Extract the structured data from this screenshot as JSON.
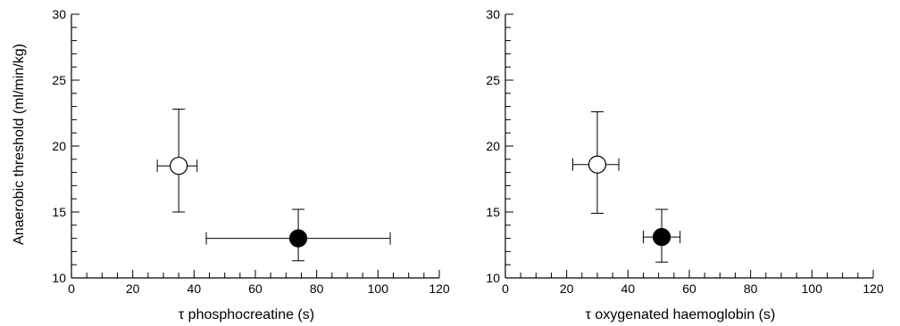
{
  "chart_data": [
    {
      "type": "scatter",
      "xlabel": "τ phosphocreatine (s)",
      "ylabel": "Anaerobic threshold (ml/min/kg)",
      "xlim": [
        0,
        120
      ],
      "ylim": [
        10,
        30
      ],
      "xticks": [
        "0",
        "20",
        "40",
        "60",
        "80",
        "100",
        "120"
      ],
      "yticks": [
        "10",
        "15",
        "20",
        "25",
        "30"
      ],
      "grid": false,
      "series": [
        {
          "marker": "open-circle",
          "x": 35,
          "y": 18.5,
          "xerr": [
            28,
            41
          ],
          "yerr": [
            15,
            22.8
          ]
        },
        {
          "marker": "filled-circle",
          "x": 74,
          "y": 13,
          "xerr": [
            44,
            104
          ],
          "yerr": [
            11.3,
            15.2
          ]
        }
      ]
    },
    {
      "type": "scatter",
      "xlabel": "τ oxygenated haemoglobin (s)",
      "ylabel": "",
      "xlim": [
        0,
        120
      ],
      "ylim": [
        10,
        30
      ],
      "xticks": [
        "0",
        "20",
        "40",
        "60",
        "80",
        "100",
        "120"
      ],
      "yticks": [
        "10",
        "15",
        "20",
        "25",
        "30"
      ],
      "grid": false,
      "series": [
        {
          "marker": "open-circle",
          "x": 30,
          "y": 18.6,
          "xerr": [
            22,
            37
          ],
          "yerr": [
            14.9,
            22.6
          ]
        },
        {
          "marker": "filled-circle",
          "x": 51,
          "y": 13.1,
          "xerr": [
            45,
            57
          ],
          "yerr": [
            11.2,
            15.2
          ]
        }
      ]
    }
  ]
}
